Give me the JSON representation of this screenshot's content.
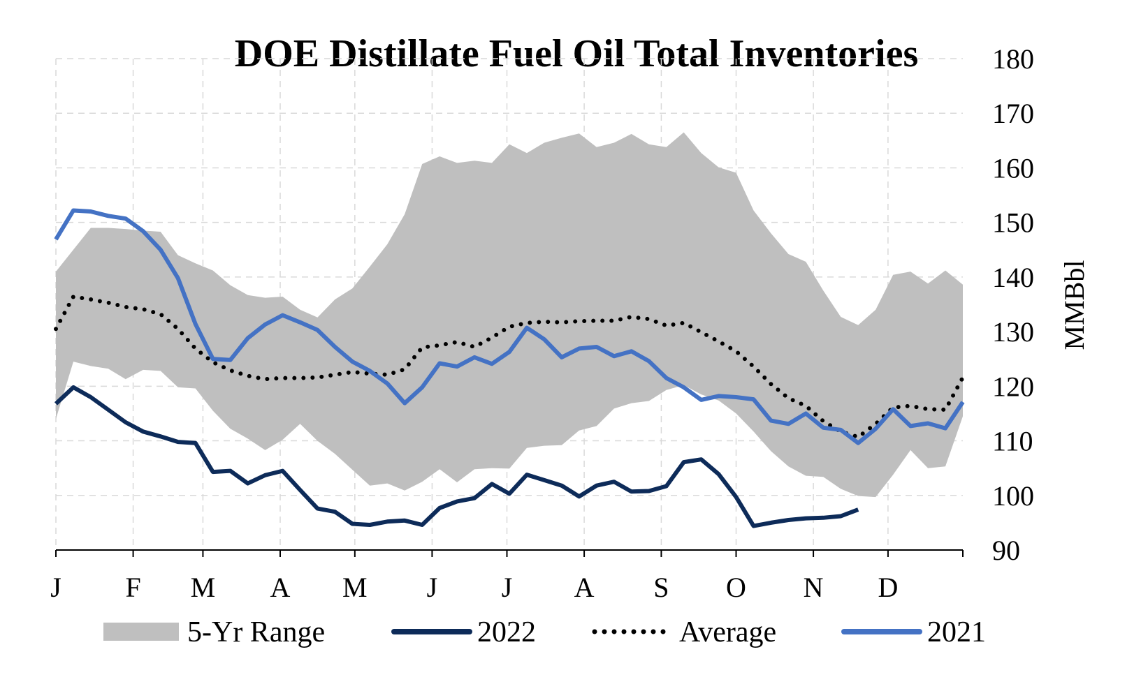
{
  "chart_data": {
    "type": "line",
    "title": "DOE Distillate Fuel Oil Total Inventories",
    "ylabel": "MMBbl",
    "ylim": [
      90,
      180
    ],
    "y_ticks": [
      "90",
      "100",
      "110",
      "120",
      "130",
      "140",
      "150",
      "160",
      "170",
      "180"
    ],
    "x_range": [
      0,
      52
    ],
    "x_ticks": [
      {
        "label": "J",
        "week": 0
      },
      {
        "label": "F",
        "week": 4.43
      },
      {
        "label": "M",
        "week": 8.43
      },
      {
        "label": "A",
        "week": 12.86
      },
      {
        "label": "M",
        "week": 17.14
      },
      {
        "label": "J",
        "week": 21.57
      },
      {
        "label": "J",
        "week": 25.86
      },
      {
        "label": "A",
        "week": 30.29
      },
      {
        "label": "S",
        "week": 34.71
      },
      {
        "label": "O",
        "week": 39.0
      },
      {
        "label": "N",
        "week": 43.43
      },
      {
        "label": "D",
        "week": 47.71
      }
    ],
    "grid": true,
    "legend_position": "bottom",
    "colors": {
      "range": "#bfbfbf",
      "s2022": "#0d2b59",
      "average": "#000000",
      "s2021": "#4472c4",
      "grid": "#d9d9d9"
    },
    "range": {
      "name": "5-Yr Range",
      "high": [
        141,
        145,
        149,
        149,
        148.8,
        148.5,
        148.3,
        144,
        142.5,
        141.2,
        138.5,
        136.7,
        136.2,
        136.4,
        134,
        132.6,
        135.9,
        137.9,
        141.9,
        146,
        151.5,
        160.7,
        162.1,
        160.9,
        161.3,
        160.9,
        164.3,
        162.7,
        164.6,
        165.5,
        166.3,
        163.8,
        164.6,
        166.2,
        164.3,
        163.8,
        166.5,
        162.7,
        160.1,
        159.1,
        152.2,
        148,
        144.2,
        142.8,
        137.5,
        132.7,
        131.2,
        134,
        140.4,
        141,
        138.8,
        141.2,
        138.6
      ],
      "low": [
        114,
        124.5,
        123.7,
        123.2,
        121.3,
        123,
        122.8,
        119.8,
        119.6,
        115.5,
        112.2,
        110.4,
        108.3,
        110.2,
        113.1,
        110,
        107.6,
        104.7,
        101.8,
        102.2,
        100.9,
        102.5,
        104.8,
        102.4,
        104.8,
        105,
        104.9,
        108.7,
        109.1,
        109.2,
        111.9,
        112.7,
        115.9,
        116.9,
        117.3,
        119.3,
        120.2,
        118.5,
        117.4,
        115,
        111.7,
        108.1,
        105.3,
        103.6,
        103.4,
        101.2,
        99.9,
        99.7,
        103.8,
        108.3,
        105,
        105.3,
        114.5
      ]
    },
    "series": [
      {
        "name": "2022",
        "values": [
          116.8,
          119.8,
          118,
          115.7,
          113.4,
          111.7,
          110.8,
          109.8,
          109.6,
          104.3,
          104.5,
          102.2,
          103.7,
          104.5,
          101,
          97.6,
          97,
          94.8,
          94.6,
          95.2,
          95.4,
          94.6,
          97.7,
          98.9,
          99.5,
          102.1,
          100.3,
          103.8,
          102.8,
          101.8,
          99.8,
          101.8,
          102.5,
          100.7,
          100.8,
          101.7,
          106.1,
          106.6,
          103.9,
          99.7,
          94.4,
          95,
          95.5,
          95.8,
          95.9,
          96.2,
          97.4
        ]
      },
      {
        "name": "Average",
        "values": [
          130.5,
          136.4,
          135.9,
          135.3,
          134.5,
          134.1,
          133.2,
          130.5,
          126.9,
          124.4,
          122.9,
          121.9,
          121.3,
          121.5,
          121.5,
          121.6,
          122.1,
          122.6,
          122.3,
          122.1,
          123.1,
          127.1,
          127.5,
          128.1,
          127.2,
          128.9,
          130.9,
          131.6,
          131.8,
          131.7,
          131.9,
          132,
          132,
          132.7,
          132.3,
          131.1,
          131.6,
          129.9,
          128.2,
          126.4,
          123.6,
          120.4,
          117.8,
          116.4,
          113.6,
          111.7,
          110.7,
          113.1,
          116.1,
          116.4,
          115.8,
          115.7,
          121.6
        ]
      },
      {
        "name": "2021",
        "values": [
          146.9,
          152.2,
          152,
          151.2,
          150.7,
          148.4,
          145,
          139.8,
          131.4,
          125,
          124.8,
          128.8,
          131.3,
          133,
          131.7,
          130.3,
          127.2,
          124.5,
          122.8,
          120.5,
          116.9,
          119.8,
          124.2,
          123.6,
          125.3,
          124.1,
          126.3,
          130.7,
          128.6,
          125.3,
          126.9,
          127.2,
          125.5,
          126.4,
          124.6,
          121.5,
          119.8,
          117.5,
          118.2,
          118,
          117.6,
          113.7,
          113.1,
          115,
          112.4,
          112,
          109.6,
          112.2,
          115.8,
          112.7,
          113.2,
          112.3,
          117.1
        ]
      }
    ]
  }
}
